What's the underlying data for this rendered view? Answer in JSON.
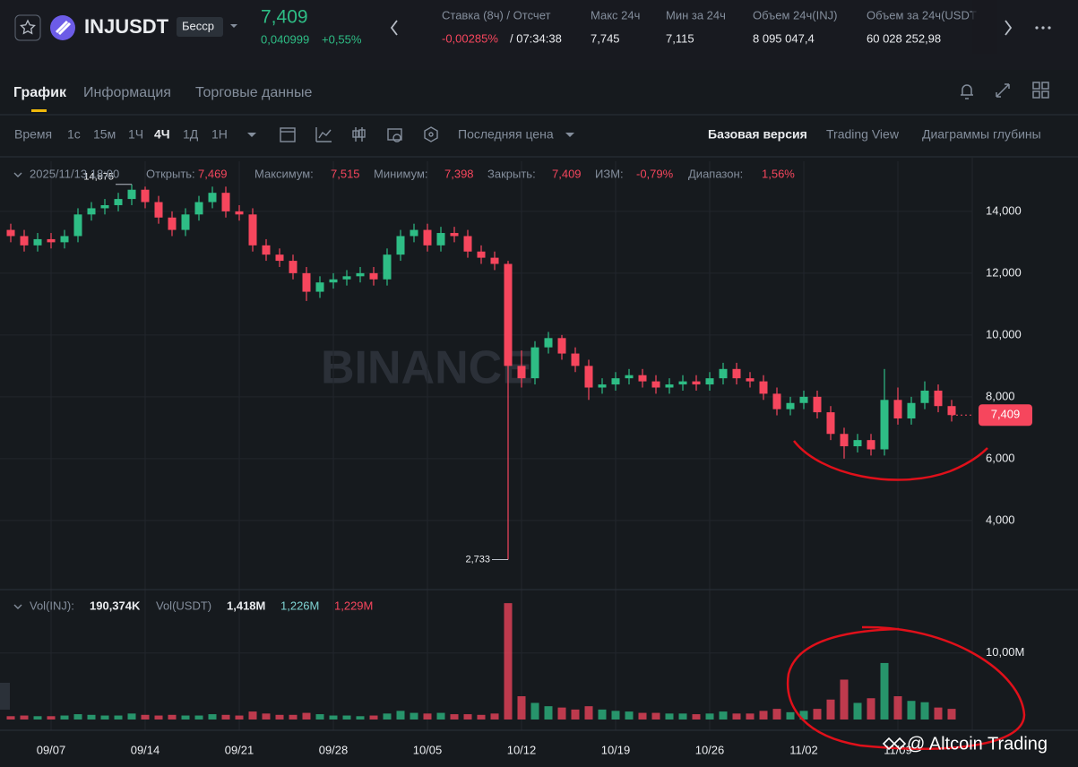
{
  "header": {
    "symbol": "INJUSDT",
    "contract_type": "Бесср",
    "price": "7,409",
    "change": "0,040999",
    "change_percent": "+0,55%",
    "stats": [
      {
        "label": "Ставка (8ч) / Отсчет",
        "value": "-0,00285%",
        "value2": "/ 07:34:38"
      },
      {
        "label": "Макс 24ч",
        "value": "7,745"
      },
      {
        "label": "Мин за 24ч",
        "value": "7,115"
      },
      {
        "label": "Объем 24ч(INJ)",
        "value": "8 095 047,4"
      },
      {
        "label": "Объем за 24ч(USDT",
        "value": "60 028 252,98"
      }
    ]
  },
  "tabs": [
    "График",
    "Информация",
    "Торговые данные"
  ],
  "toolbar": {
    "time_label": "Время",
    "intervals": [
      "1с",
      "15м",
      "1Ч",
      "4Ч",
      "1Д",
      "1Н"
    ],
    "price_type": "Последняя цена",
    "views": [
      "Базовая версия",
      "Trading View",
      "Диаграммы глубины"
    ]
  },
  "ohlc_info": {
    "date": "2025/11/13 18:00",
    "fields": [
      {
        "label": "Открыть:",
        "value": "7,469"
      },
      {
        "label": "Максимум:",
        "value": "7,515"
      },
      {
        "label": "Минимум:",
        "value": "7,398"
      },
      {
        "label": "Закрыть:",
        "value": "7,409"
      },
      {
        "label": "ИЗМ:",
        "value": "-0,79%"
      },
      {
        "label": "Диапазон:",
        "value": "1,56%"
      }
    ]
  },
  "volume_info": {
    "inj_label": "Vol(INJ):",
    "inj_value": "190,374K",
    "usdt_label": "Vol(USDT)",
    "usdt_value": "1,418M",
    "ma1": "1,226M",
    "ma2": "1,229M"
  },
  "watermark": "BINANCE",
  "credit": "@ Altcoin Trading",
  "chart_data": [
    {
      "type": "candlestick",
      "up_color": "#2ebd85",
      "down_color": "#f6465d",
      "grid": true,
      "categories": [
        null,
        null,
        null,
        "09/07",
        null,
        null,
        null,
        null,
        null,
        null,
        "09/14",
        null,
        null,
        null,
        null,
        null,
        null,
        "09/21",
        null,
        null,
        null,
        null,
        null,
        null,
        "09/28",
        null,
        null,
        null,
        null,
        null,
        null,
        "10/05",
        null,
        null,
        null,
        null,
        null,
        null,
        "10/12",
        null,
        null,
        null,
        null,
        null,
        null,
        "10/19",
        null,
        null,
        null,
        null,
        null,
        null,
        "10/26",
        null,
        null,
        null,
        null,
        null,
        null,
        "11/02",
        null,
        null,
        null,
        null,
        null,
        null,
        "11/09",
        null,
        null,
        null,
        null
      ],
      "open": [
        13.4,
        13.2,
        12.9,
        13.1,
        13.0,
        13.2,
        13.9,
        14.1,
        14.2,
        14.4,
        14.7,
        14.3,
        13.8,
        13.4,
        13.9,
        14.3,
        14.6,
        14.0,
        13.9,
        12.9,
        12.6,
        12.4,
        12.0,
        11.4,
        11.7,
        11.8,
        11.9,
        12.0,
        11.8,
        12.6,
        13.2,
        13.4,
        12.9,
        13.3,
        13.2,
        12.7,
        12.5,
        12.3,
        9.0,
        8.6,
        9.6,
        9.9,
        9.4,
        9.0,
        8.3,
        8.4,
        8.6,
        8.7,
        8.5,
        8.3,
        8.4,
        8.5,
        8.4,
        8.6,
        8.9,
        8.6,
        8.5,
        8.1,
        7.6,
        7.8,
        8.0,
        7.5,
        6.8,
        6.4,
        6.6,
        6.3,
        7.9,
        7.3,
        7.8,
        8.2,
        7.7
      ],
      "high": [
        13.6,
        13.4,
        13.3,
        13.3,
        13.4,
        14.1,
        14.3,
        14.4,
        14.6,
        14.875,
        14.8,
        14.5,
        14.0,
        14.1,
        14.5,
        14.8,
        14.8,
        14.2,
        14.1,
        13.1,
        12.8,
        12.6,
        12.2,
        11.9,
        12.0,
        12.1,
        12.2,
        12.2,
        12.8,
        13.4,
        13.6,
        13.6,
        13.5,
        13.5,
        13.4,
        12.9,
        12.7,
        12.4,
        9.5,
        9.8,
        10.1,
        10.0,
        9.6,
        9.2,
        8.6,
        8.8,
        8.9,
        8.9,
        8.7,
        8.6,
        8.7,
        8.7,
        8.8,
        9.1,
        9.1,
        8.8,
        8.7,
        8.3,
        8.0,
        8.2,
        8.2,
        7.7,
        7.0,
        6.8,
        6.8,
        8.9,
        8.3,
        8.0,
        8.5,
        8.4,
        7.9
      ],
      "low": [
        13.0,
        12.7,
        12.7,
        12.8,
        12.8,
        13.0,
        13.7,
        13.9,
        14.0,
        14.2,
        14.1,
        13.6,
        13.2,
        13.2,
        13.7,
        14.1,
        13.8,
        13.7,
        12.7,
        12.4,
        12.2,
        11.8,
        11.1,
        11.2,
        11.5,
        11.6,
        11.7,
        11.6,
        11.6,
        12.4,
        13.0,
        12.7,
        12.7,
        13.0,
        12.5,
        12.3,
        12.1,
        2.733,
        8.3,
        8.4,
        9.4,
        9.2,
        8.8,
        7.9,
        8.1,
        8.2,
        8.4,
        8.3,
        8.1,
        8.1,
        8.2,
        8.2,
        8.2,
        8.4,
        8.4,
        8.3,
        7.9,
        7.4,
        7.4,
        7.6,
        7.3,
        6.6,
        6.0,
        6.2,
        6.1,
        6.1,
        7.1,
        7.1,
        7.6,
        7.5,
        7.2
      ],
      "close": [
        13.2,
        12.9,
        13.1,
        13.0,
        13.2,
        13.9,
        14.1,
        14.2,
        14.4,
        14.7,
        14.3,
        13.8,
        13.4,
        13.9,
        14.3,
        14.6,
        14.0,
        13.9,
        12.9,
        12.6,
        12.4,
        12.0,
        11.4,
        11.7,
        11.8,
        11.9,
        12.0,
        11.8,
        12.6,
        13.2,
        13.4,
        12.9,
        13.3,
        13.2,
        12.7,
        12.5,
        12.3,
        9.0,
        8.6,
        9.6,
        9.9,
        9.4,
        9.0,
        8.3,
        8.4,
        8.6,
        8.7,
        8.5,
        8.3,
        8.4,
        8.5,
        8.4,
        8.6,
        8.9,
        8.6,
        8.5,
        8.1,
        7.6,
        7.8,
        8.0,
        7.5,
        6.8,
        6.4,
        6.6,
        6.3,
        7.9,
        7.3,
        7.8,
        8.2,
        7.7,
        7.409
      ],
      "annotations": [
        {
          "value": 14.875,
          "label": "14,875"
        },
        {
          "value": 2.733,
          "label": "2,733"
        },
        {
          "value": 7.409,
          "label": "7,409"
        }
      ],
      "ylim": [
        1.85,
        15.62
      ],
      "yticks": [
        {
          "value": 4,
          "label": "4,000"
        },
        {
          "value": 6,
          "label": "6,000"
        },
        {
          "value": 8,
          "label": "8,000"
        },
        {
          "value": 10,
          "label": "10,000"
        },
        {
          "value": 12,
          "label": "12,000"
        },
        {
          "value": 14,
          "label": "14,000"
        }
      ]
    },
    {
      "type": "bar",
      "grid": true,
      "values": [
        0.5,
        0.6,
        0.5,
        0.5,
        0.6,
        0.8,
        0.7,
        0.6,
        0.6,
        0.9,
        0.7,
        0.6,
        0.7,
        0.6,
        0.6,
        0.8,
        0.7,
        0.6,
        1.2,
        0.9,
        0.7,
        0.7,
        1.0,
        0.8,
        0.6,
        0.6,
        0.5,
        0.6,
        0.9,
        1.3,
        1.0,
        0.9,
        1.0,
        0.8,
        0.8,
        0.7,
        0.9,
        17.5,
        3.5,
        2.5,
        2.0,
        1.8,
        1.5,
        2.0,
        1.5,
        1.3,
        1.2,
        1.0,
        1.0,
        0.9,
        0.9,
        0.8,
        0.9,
        1.2,
        0.9,
        0.9,
        1.3,
        1.6,
        1.1,
        1.3,
        1.6,
        3.0,
        6.0,
        2.5,
        3.2,
        8.5,
        3.5,
        2.8,
        2.6,
        1.8,
        1.6
      ],
      "ylim": [
        0,
        19
      ],
      "yticks": [
        {
          "value": 10,
          "label": "10,00M"
        }
      ]
    }
  ]
}
